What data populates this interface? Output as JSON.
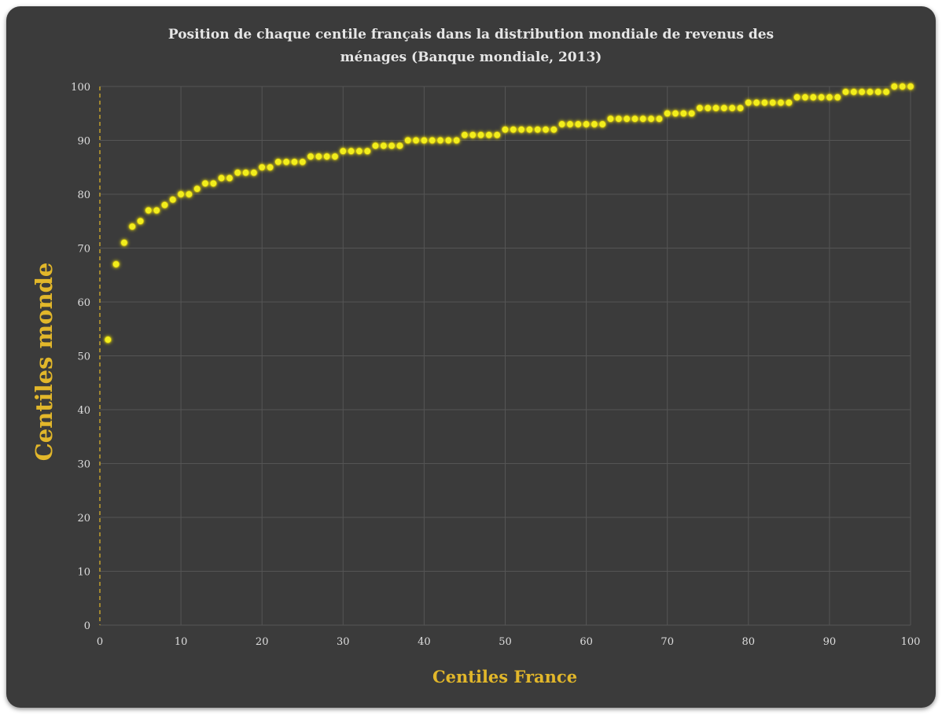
{
  "chart_data": {
    "type": "scatter",
    "title_lines": [
      "Position de chaque centile français dans la distribution mondiale de revenus des",
      "ménages  (Banque mondiale, 2013)"
    ],
    "xlabel": "Centiles France",
    "ylabel": "Centiles monde",
    "xlim": [
      0,
      100
    ],
    "ylim": [
      0,
      100
    ],
    "xticks": [
      "0",
      "10",
      "20",
      "30",
      "40",
      "50",
      "60",
      "70",
      "80",
      "90",
      "100"
    ],
    "yticks": [
      "0",
      "10",
      "20",
      "30",
      "40",
      "50",
      "60",
      "70",
      "80",
      "90",
      "100"
    ],
    "grid": true,
    "marker_color": "#f2ee1c",
    "background_color": "#3b3b3b",
    "accent_color": "#e2b72a",
    "x": [
      1,
      2,
      3,
      4,
      5,
      6,
      7,
      8,
      9,
      10,
      11,
      12,
      13,
      14,
      15,
      16,
      17,
      18,
      19,
      20,
      21,
      22,
      23,
      24,
      25,
      26,
      27,
      28,
      29,
      30,
      31,
      32,
      33,
      34,
      35,
      36,
      37,
      38,
      39,
      40,
      41,
      42,
      43,
      44,
      45,
      46,
      47,
      48,
      49,
      50,
      51,
      52,
      53,
      54,
      55,
      56,
      57,
      58,
      59,
      60,
      61,
      62,
      63,
      64,
      65,
      66,
      67,
      68,
      69,
      70,
      71,
      72,
      73,
      74,
      75,
      76,
      77,
      78,
      79,
      80,
      81,
      82,
      83,
      84,
      85,
      86,
      87,
      88,
      89,
      90,
      91,
      92,
      93,
      94,
      95,
      96,
      97,
      98,
      99,
      100
    ],
    "y": [
      53,
      67,
      71,
      74,
      75,
      77,
      77,
      78,
      79,
      80,
      80,
      81,
      82,
      82,
      83,
      83,
      84,
      84,
      84,
      85,
      85,
      86,
      86,
      86,
      86,
      87,
      87,
      87,
      87,
      88,
      88,
      88,
      88,
      89,
      89,
      89,
      89,
      90,
      90,
      90,
      90,
      90,
      90,
      90,
      91,
      91,
      91,
      91,
      91,
      92,
      92,
      92,
      92,
      92,
      92,
      92,
      93,
      93,
      93,
      93,
      93,
      93,
      94,
      94,
      94,
      94,
      94,
      94,
      94,
      95,
      95,
      95,
      95,
      96,
      96,
      96,
      96,
      96,
      96,
      97,
      97,
      97,
      97,
      97,
      97,
      98,
      98,
      98,
      98,
      98,
      98,
      99,
      99,
      99,
      99,
      99,
      99,
      100,
      100,
      100
    ]
  }
}
